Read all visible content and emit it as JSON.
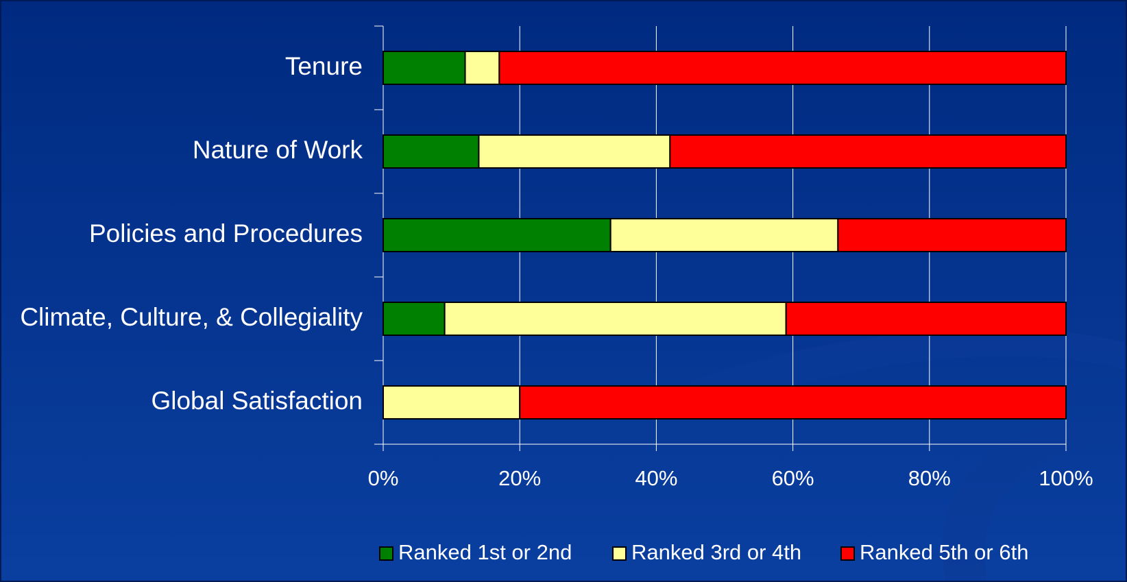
{
  "chart_data": {
    "type": "stacked-barh",
    "categories": [
      "Tenure",
      "Nature of Work",
      "Policies and Procedures",
      "Climate, Culture, & Collegiality",
      "Global Satisfaction"
    ],
    "series": [
      {
        "name": "Ranked 1st or 2nd",
        "color": "#008000",
        "values": [
          12,
          14,
          33.3,
          9,
          0
        ]
      },
      {
        "name": "Ranked 3rd or 4th",
        "color": "#ffff99",
        "values": [
          5,
          28,
          33.3,
          50,
          20
        ]
      },
      {
        "name": "Ranked 5th or 6th",
        "color": "#ff0000",
        "values": [
          83,
          58,
          33.4,
          41,
          80
        ]
      }
    ],
    "xlim": [
      0,
      100
    ],
    "xticks": [
      {
        "value": 0,
        "label": "0%"
      },
      {
        "value": 20,
        "label": "20%"
      },
      {
        "value": 40,
        "label": "40%"
      },
      {
        "value": 60,
        "label": "60%"
      },
      {
        "value": 80,
        "label": "80%"
      },
      {
        "value": 100,
        "label": "100%"
      }
    ],
    "grid": true,
    "legend": "bottom"
  }
}
